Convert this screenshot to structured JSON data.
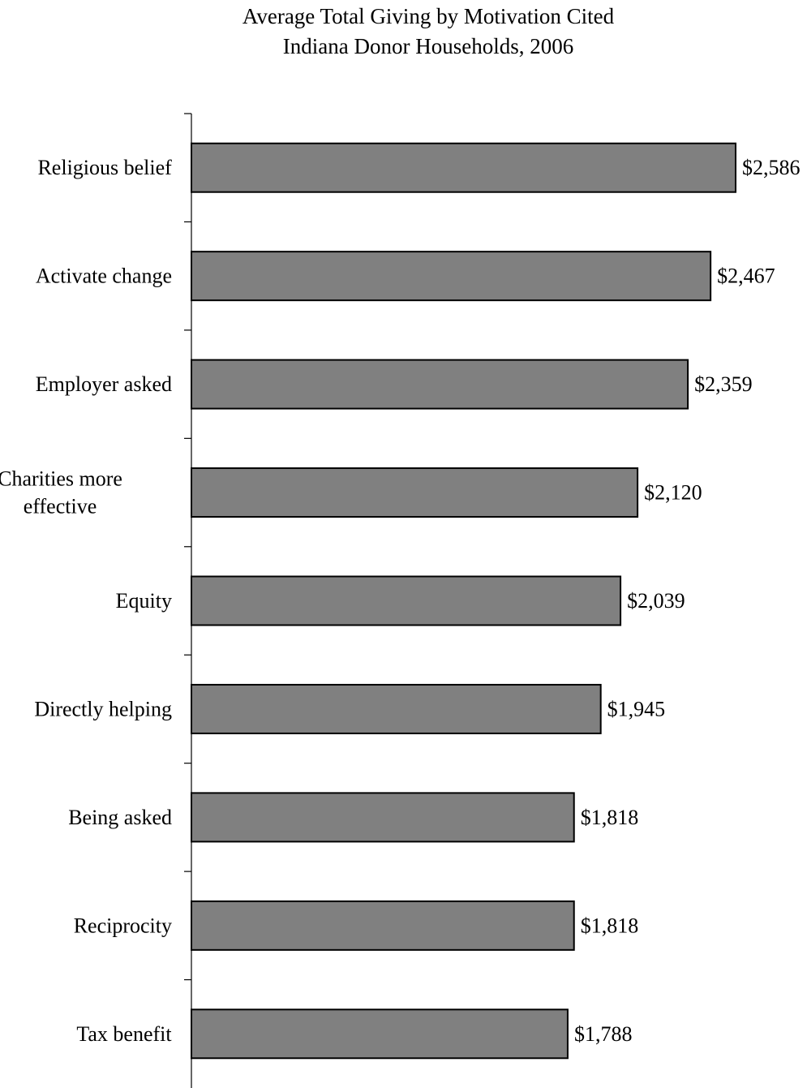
{
  "chart_data": {
    "type": "bar",
    "orientation": "horizontal",
    "title": [
      "Average Total Giving by Motivation Cited",
      "Indiana Donor Households, 2006"
    ],
    "categories": [
      [
        "Religious belief"
      ],
      [
        "Activate change"
      ],
      [
        "Employer asked"
      ],
      [
        "Charities more",
        "effective"
      ],
      [
        "Equity"
      ],
      [
        "Directly helping"
      ],
      [
        "Being asked"
      ],
      [
        "Reciprocity"
      ],
      [
        "Tax benefit"
      ]
    ],
    "values": [
      2586,
      2467,
      2359,
      2120,
      2039,
      1945,
      1818,
      1818,
      1788
    ],
    "value_labels": [
      "$2,586",
      "$2,467",
      "$2,359",
      "$2,120",
      "$2,039",
      "$1,945",
      "$1,818",
      "$1,818",
      "$1,788"
    ],
    "xlim": [
      0,
      2586
    ],
    "xlabel": "",
    "ylabel": "",
    "grid": false,
    "legend": "none",
    "bar_color": "#808080",
    "bar_edge_color": "#000000"
  }
}
